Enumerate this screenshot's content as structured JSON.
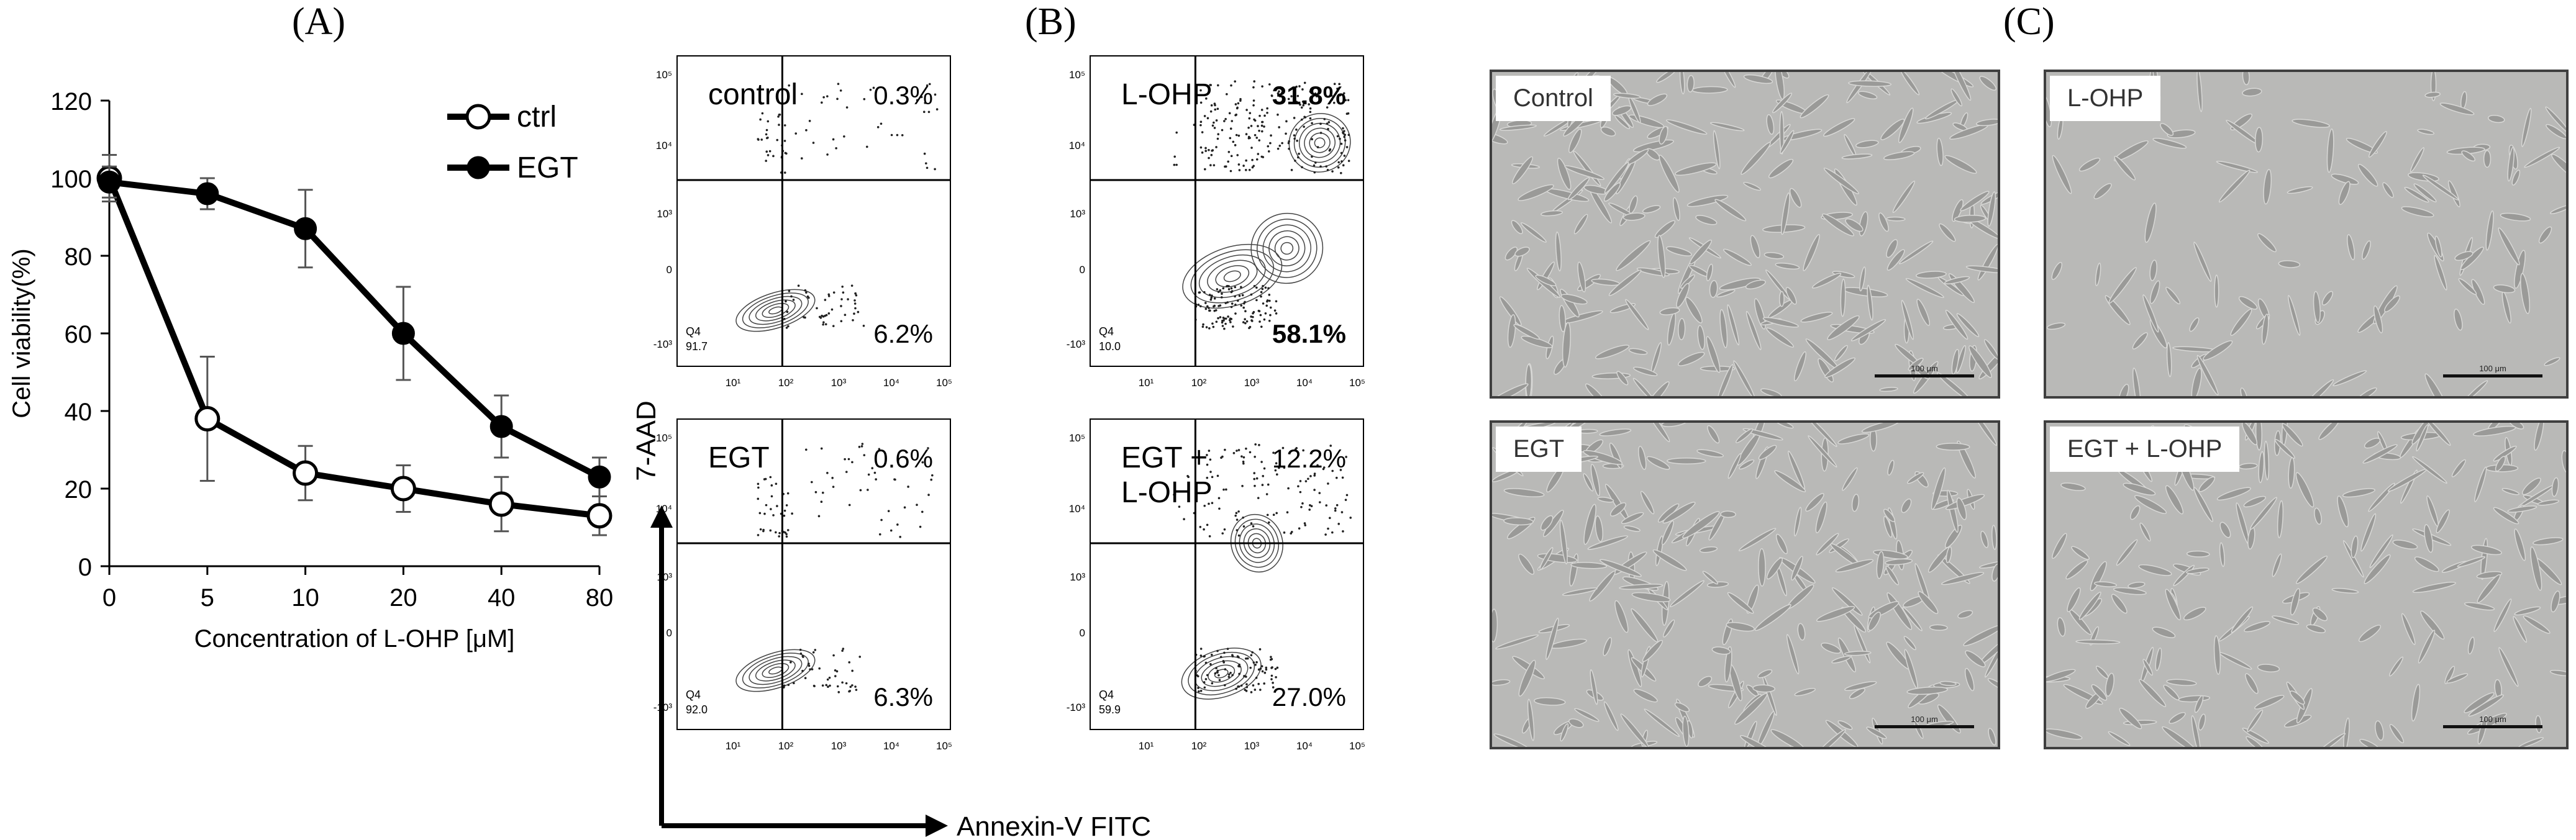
{
  "panel_labels": {
    "a": "(A)",
    "b": "(B)",
    "c": "(C)"
  },
  "chart_data": [
    {
      "type": "line",
      "title": "",
      "xlabel": "Concentration of L-OHP [μM]",
      "ylabel": "Cell viability(%)",
      "categories": [
        "0",
        "5",
        "10",
        "20",
        "40",
        "80"
      ],
      "ylim": [
        0,
        120
      ],
      "yticks": [
        0,
        20,
        40,
        60,
        80,
        100,
        120
      ],
      "legend_position": "top-right",
      "series": [
        {
          "name": "ctrl",
          "marker": "open-circle",
          "color": "#000000",
          "values": [
            100,
            38,
            24,
            20,
            16,
            13
          ],
          "errors": [
            6,
            16,
            7,
            6,
            7,
            5
          ]
        },
        {
          "name": "EGT",
          "marker": "filled-circle",
          "color": "#000000",
          "values": [
            99,
            96,
            87,
            60,
            36,
            23
          ],
          "errors": [
            4,
            4,
            10,
            12,
            8,
            5
          ]
        }
      ]
    },
    {
      "type": "scatter",
      "xlabel": "Annexin-V FITC",
      "ylabel": "7-AAD",
      "x_tick_labels": [
        "10¹",
        "10²",
        "10³",
        "10⁴",
        "10⁵"
      ],
      "y_tick_labels": [
        "10⁵",
        "10⁴",
        "10³",
        "0",
        "-10³"
      ],
      "plots": [
        {
          "name": "control",
          "upper_right": "0.3%",
          "lower_right": "6.2%",
          "q4_label": "Q4",
          "q4_value": "91.7",
          "bold": false
        },
        {
          "name": "L-OHP",
          "upper_right": "31.8%",
          "lower_right": "58.1%",
          "q4_label": "Q4",
          "q4_value": "10.0",
          "bold": true
        },
        {
          "name": "EGT",
          "upper_right": "0.6%",
          "lower_right": "6.3%",
          "q4_label": "Q4",
          "q4_value": "92.0",
          "bold": false
        },
        {
          "name": "EGT + L-OHP",
          "name_lines": [
            "EGT +",
            "L-OHP"
          ],
          "upper_right": "12.2%",
          "lower_right": "27.0%",
          "q4_label": "Q4",
          "q4_value": "59.9",
          "bold": false
        }
      ]
    }
  ],
  "micrographs": [
    {
      "label": "Control",
      "scale": "100 μm"
    },
    {
      "label": "L-OHP",
      "scale": "100 μm"
    },
    {
      "label": "EGT",
      "scale": "100 μm"
    },
    {
      "label": "EGT + L-OHP",
      "scale": "100 μm"
    }
  ]
}
